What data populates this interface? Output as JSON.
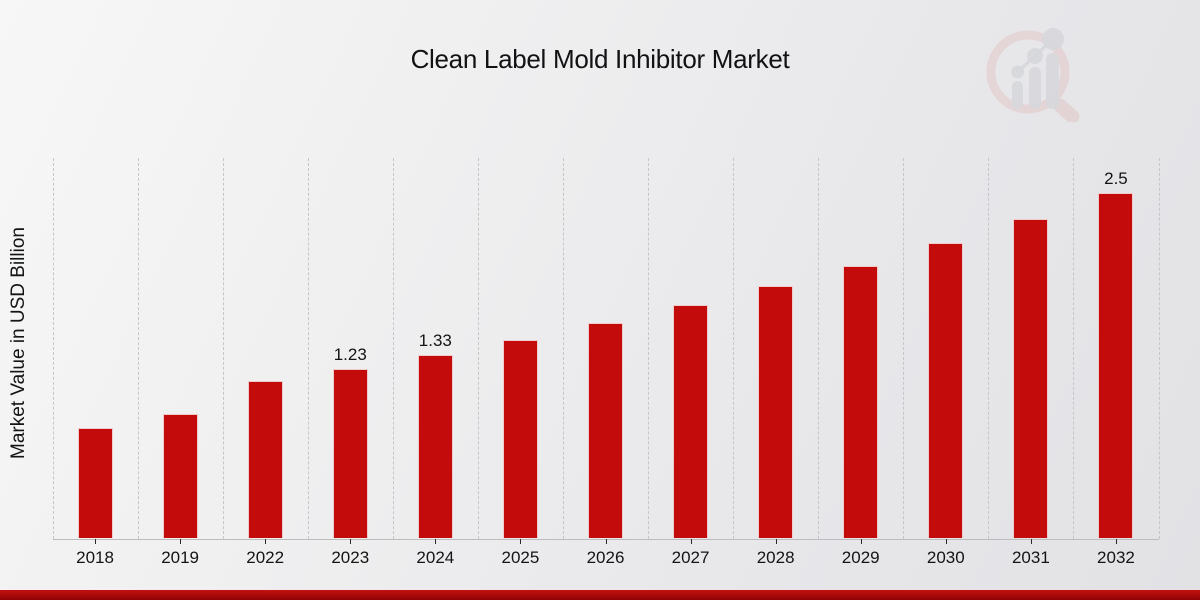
{
  "title": "Clean Label Mold Inhibitor Market",
  "ylabel": "Market Value in USD Billion",
  "chart_data": {
    "type": "bar",
    "title": "Clean Label Mold Inhibitor Market",
    "xlabel": "",
    "ylabel": "Market Value in USD Billion",
    "categories": [
      "2018",
      "2019",
      "2022",
      "2023",
      "2024",
      "2025",
      "2026",
      "2027",
      "2028",
      "2029",
      "2030",
      "2031",
      "2032"
    ],
    "values": [
      0.8,
      0.9,
      1.14,
      1.23,
      1.33,
      1.44,
      1.56,
      1.69,
      1.83,
      1.97,
      2.14,
      2.31,
      2.5
    ],
    "data_labels": [
      "",
      "",
      "",
      "1.23",
      "1.33",
      "",
      "",
      "",
      "",
      "",
      "",
      "",
      "2.5"
    ],
    "unit": "USD Billion",
    "ylim": [
      0,
      2.755
    ],
    "grid": "vertical-dashed",
    "legend": "none",
    "bar_color": "#c40b0b"
  },
  "colors": {
    "bar": "#c40b0b",
    "banner_red": "#a90808",
    "background_light": "#f7f7f7",
    "background_dark": "#e2e2e5",
    "gridline": "#c6c6c8",
    "text": "#141414"
  },
  "icons": {
    "logo": "market-research-magnifier-watermark"
  }
}
